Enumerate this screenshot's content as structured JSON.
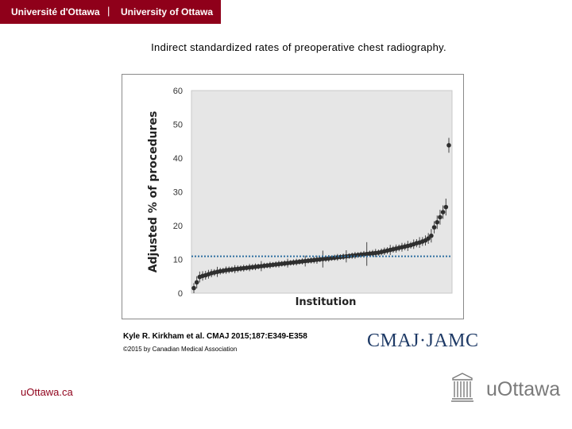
{
  "header": {
    "left_label": "Université d'Ottawa",
    "separator": "|",
    "right_label": "University of Ottawa"
  },
  "slide_title": "Indirect standardized rates of preoperative chest radiography.",
  "citation": "Kyle R. Kirkham et al. CMAJ 2015;187:E349-E358",
  "copyright": "©2015 by Canadian Medical Association",
  "journal_logo": "CMAJ·JAMC",
  "footer_url": "uOttawa.ca",
  "university_logo_text": "uOttawa",
  "colors": {
    "brand": "#8f001a",
    "plot_bg": "#e6e6e6",
    "points": "#2e2e2e",
    "reference_line": "#2f6fa0",
    "journal": "#1e3a66"
  },
  "chart_data": {
    "type": "scatter",
    "title": "Indirect standardized rates of preoperative chest radiography.",
    "xlabel": "Institution",
    "ylabel": "Adjusted % of procedures",
    "ylim": [
      0,
      60
    ],
    "yticks": [
      0,
      10,
      20,
      30,
      40,
      50,
      60
    ],
    "xticks": [],
    "grid": false,
    "legend": "none",
    "reference_line": {
      "y": 10.9,
      "style": "dotted"
    },
    "series": [
      {
        "values": [
          1.5,
          3.2,
          4.8,
          5.1,
          5.3,
          5.6,
          5.9,
          6.1,
          6.3,
          6.5,
          6.6,
          6.8,
          6.9,
          7.0,
          7.1,
          7.2,
          7.3,
          7.4,
          7.5,
          7.6,
          7.7,
          7.8,
          7.9,
          8.0,
          8.1,
          8.2,
          8.3,
          8.4,
          8.5,
          8.6,
          8.7,
          8.8,
          8.9,
          9.0,
          9.1,
          9.2,
          9.3,
          9.4,
          9.5,
          9.6,
          9.7,
          9.8,
          9.9,
          10.0,
          10.1,
          10.2,
          10.3,
          10.4,
          10.5,
          10.6,
          10.7,
          10.8,
          10.9,
          11.0,
          11.1,
          11.2,
          11.3,
          11.4,
          11.5,
          11.6,
          11.7,
          11.8,
          11.9,
          12.0,
          12.2,
          12.4,
          12.6,
          12.8,
          13.0,
          13.2,
          13.4,
          13.6,
          13.8,
          14.0,
          14.2,
          14.5,
          14.8,
          15.0,
          15.3,
          15.6,
          16.2,
          17.0,
          19.5,
          21.0,
          22.5,
          24.0,
          25.5,
          43.8
        ],
        "errors": [
          1.5,
          1.8,
          1.6,
          1.4,
          1.3,
          1.3,
          1.2,
          1.0,
          1.5,
          1.0,
          0.9,
          1.1,
          1.0,
          0.9,
          1.2,
          1.0,
          0.9,
          1.0,
          0.8,
          1.1,
          0.9,
          1.0,
          0.8,
          1.5,
          0.9,
          0.8,
          1.0,
          0.8,
          0.9,
          1.0,
          0.8,
          0.9,
          1.3,
          0.8,
          0.9,
          1.0,
          0.8,
          0.9,
          1.6,
          0.8,
          0.9,
          1.0,
          1.2,
          0.8,
          2.5,
          0.9,
          1.0,
          0.8,
          0.9,
          1.0,
          0.8,
          0.9,
          1.8,
          0.8,
          0.9,
          1.0,
          0.8,
          0.9,
          1.0,
          3.5,
          0.9,
          1.0,
          1.2,
          0.9,
          1.0,
          1.1,
          1.0,
          1.5,
          1.0,
          1.2,
          1.0,
          1.3,
          1.1,
          1.5,
          1.0,
          1.4,
          1.2,
          1.6,
          1.3,
          1.5,
          1.6,
          2.0,
          1.8,
          2.0,
          2.2,
          2.0,
          2.5,
          2.2
        ]
      }
    ]
  }
}
